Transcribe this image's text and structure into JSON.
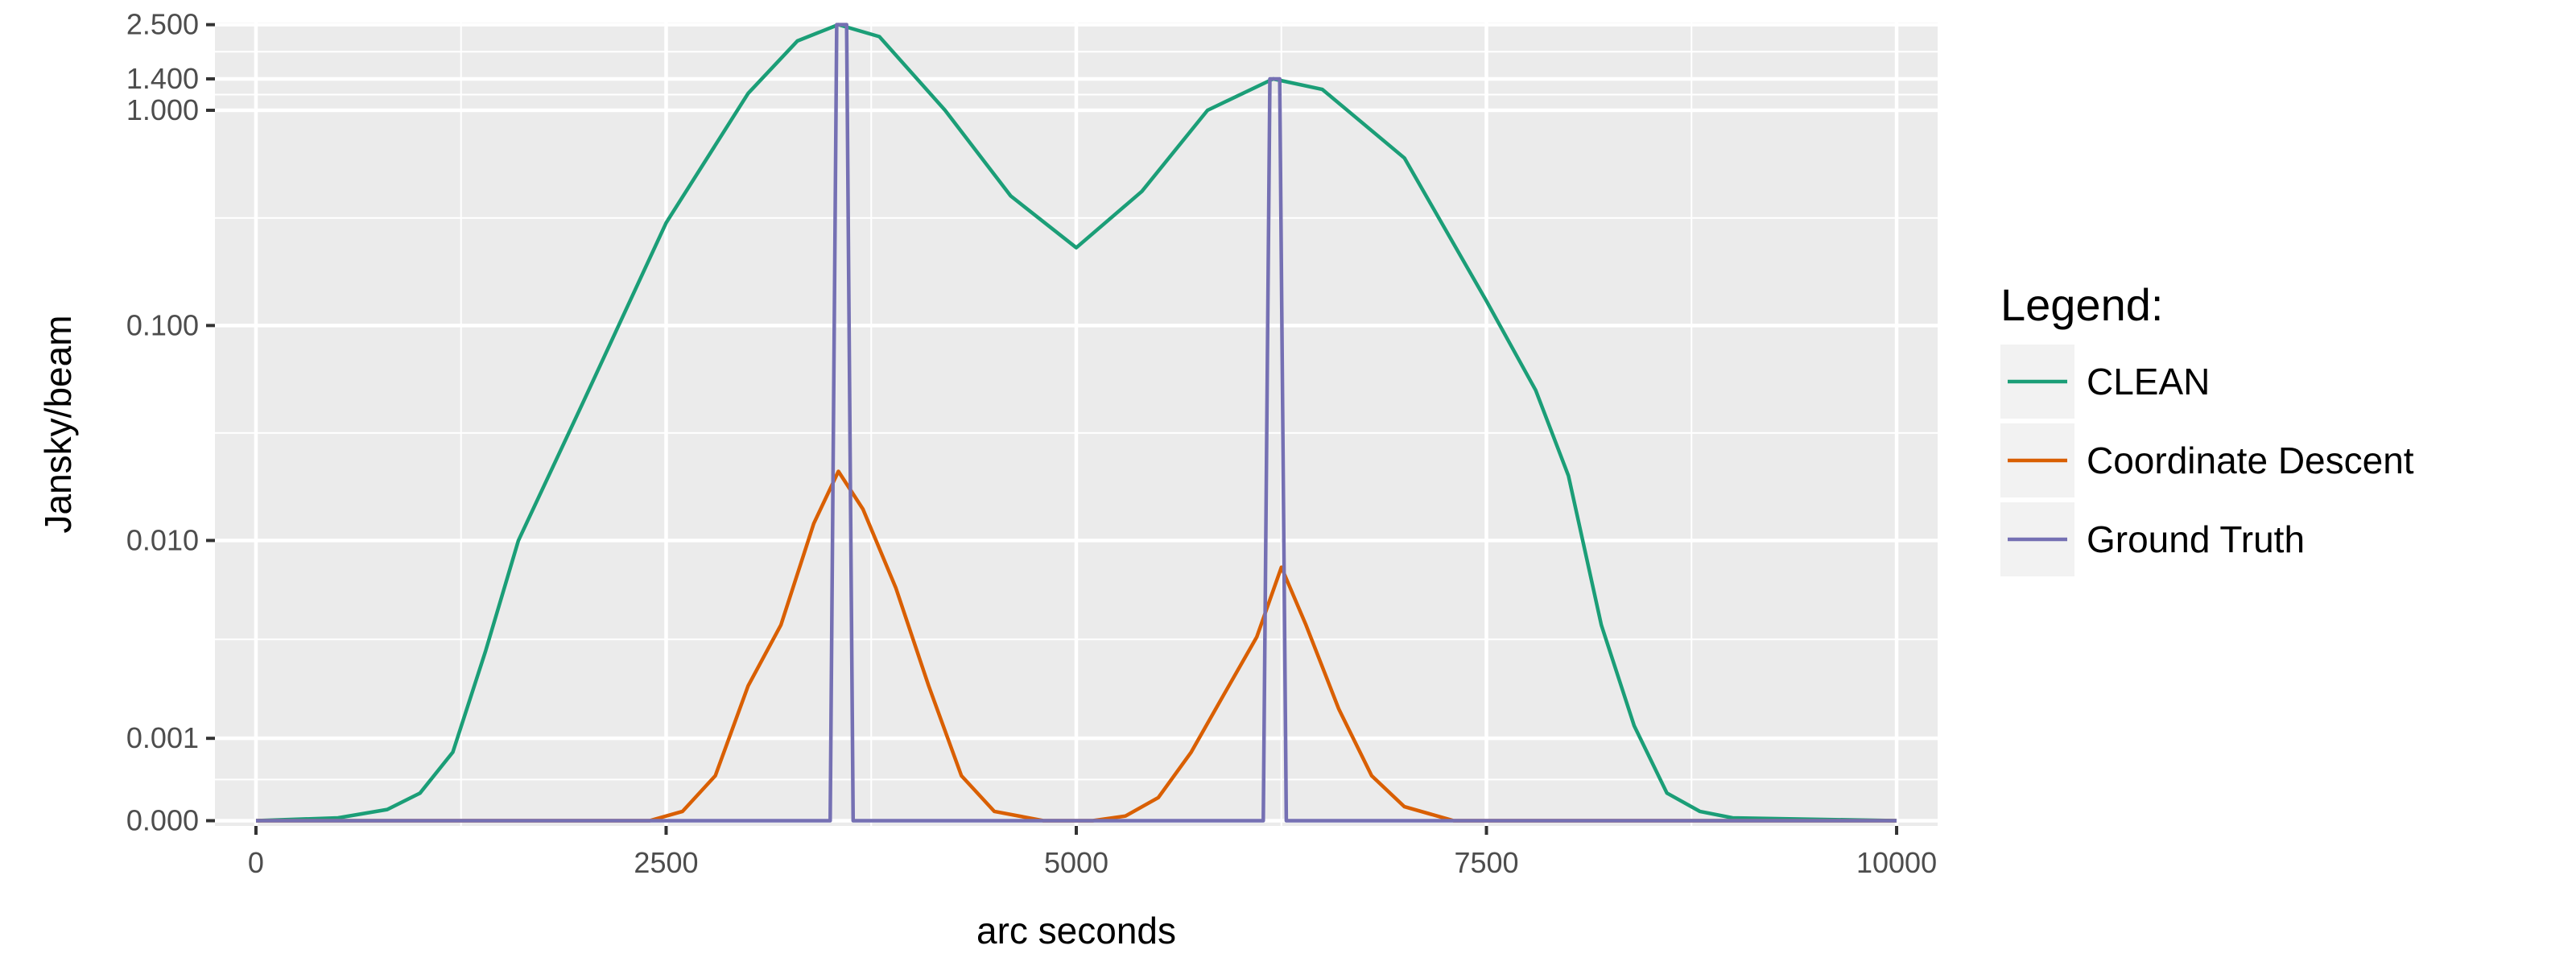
{
  "chart_data": {
    "type": "line",
    "xlabel": "arc seconds",
    "ylabel": "Jansky/beam",
    "xlim": [
      -250,
      10250
    ],
    "x_ticks": [
      0,
      2500,
      5000,
      7500,
      10000
    ],
    "x_tick_labels": [
      "0",
      "2500",
      "5000",
      "7500",
      "10000"
    ],
    "y_scale": "pseudo-log",
    "y_ticks": [
      0,
      0.001,
      0.01,
      0.1,
      1,
      1.4,
      2.5
    ],
    "y_tick_labels": [
      "0.000",
      "0.001",
      "0.010",
      "0.100",
      "1.000",
      "1.400",
      "2.500"
    ],
    "grid": true,
    "panel_background": "#ebebeb",
    "legend": {
      "title": "Legend:",
      "placement": "right",
      "entries": [
        "CLEAN",
        "Coordinate Descent",
        "Ground Truth"
      ]
    },
    "series": [
      {
        "name": "CLEAN",
        "color": "#1b9e77",
        "points": [
          [
            0,
            0
          ],
          [
            500,
            3e-05
          ],
          [
            800,
            0.00012
          ],
          [
            1000,
            0.0003
          ],
          [
            1200,
            0.0008
          ],
          [
            1400,
            0.003
          ],
          [
            1600,
            0.01
          ],
          [
            2000,
            0.045
          ],
          [
            2500,
            0.3
          ],
          [
            3000,
            1.2
          ],
          [
            3300,
            2.1
          ],
          [
            3550,
            2.5
          ],
          [
            3800,
            2.2
          ],
          [
            4200,
            1.0
          ],
          [
            4600,
            0.4
          ],
          [
            5000,
            0.23
          ],
          [
            5400,
            0.42
          ],
          [
            5800,
            1.0
          ],
          [
            6200,
            1.4
          ],
          [
            6500,
            1.25
          ],
          [
            7000,
            0.6
          ],
          [
            7500,
            0.13
          ],
          [
            7800,
            0.05
          ],
          [
            8000,
            0.02
          ],
          [
            8200,
            0.004
          ],
          [
            8400,
            0.0012
          ],
          [
            8600,
            0.0003
          ],
          [
            8800,
            0.0001
          ],
          [
            9000,
            3e-05
          ],
          [
            10000,
            0
          ]
        ]
      },
      {
        "name": "Coordinate Descent",
        "color": "#d95f02",
        "points": [
          [
            0,
            0
          ],
          [
            2400,
            0
          ],
          [
            2600,
            0.0001
          ],
          [
            2800,
            0.0005
          ],
          [
            3000,
            0.002
          ],
          [
            3200,
            0.004
          ],
          [
            3400,
            0.012
          ],
          [
            3550,
            0.021
          ],
          [
            3700,
            0.014
          ],
          [
            3900,
            0.006
          ],
          [
            4100,
            0.002
          ],
          [
            4300,
            0.0005
          ],
          [
            4500,
            0.0001
          ],
          [
            4800,
            0
          ],
          [
            5100,
            0
          ],
          [
            5300,
            5e-05
          ],
          [
            5500,
            0.00025
          ],
          [
            5700,
            0.0008
          ],
          [
            5900,
            0.0018
          ],
          [
            6100,
            0.0035
          ],
          [
            6250,
            0.0075
          ],
          [
            6400,
            0.004
          ],
          [
            6600,
            0.0015
          ],
          [
            6800,
            0.0005
          ],
          [
            7000,
            0.00015
          ],
          [
            7300,
            0
          ],
          [
            10000,
            0
          ]
        ]
      },
      {
        "name": "Ground Truth",
        "color": "#7570b3",
        "points": [
          [
            0,
            0
          ],
          [
            3500,
            0
          ],
          [
            3540,
            2.5
          ],
          [
            3600,
            2.5
          ],
          [
            3640,
            0
          ],
          [
            6140,
            0
          ],
          [
            6180,
            1.4
          ],
          [
            6240,
            1.4
          ],
          [
            6280,
            0
          ],
          [
            10000,
            0
          ]
        ]
      }
    ]
  }
}
